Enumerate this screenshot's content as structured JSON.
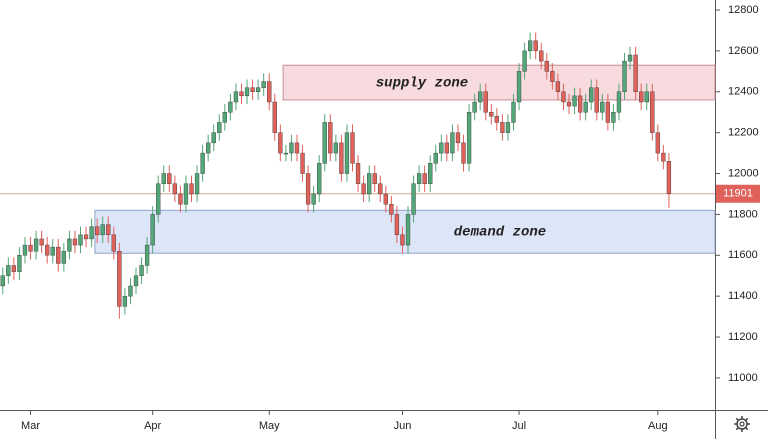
{
  "chart_data": {
    "type": "candlestick",
    "x": [
      0,
      1,
      2,
      3,
      4,
      5,
      6,
      7,
      8,
      9,
      10,
      11,
      12,
      13,
      14,
      15,
      16,
      17,
      18,
      19,
      20,
      21,
      22,
      23,
      24,
      25,
      26,
      27,
      28,
      29,
      30,
      31,
      32,
      33,
      34,
      35,
      36,
      37,
      38,
      39,
      40,
      41,
      42,
      43,
      44,
      45,
      46,
      47,
      48,
      49,
      50,
      51,
      52,
      53,
      54,
      55,
      56,
      57,
      58,
      59,
      60,
      61,
      62,
      63,
      64,
      65,
      66,
      67,
      68,
      69,
      70,
      71,
      72,
      73,
      74,
      75,
      76,
      77,
      78,
      79,
      80,
      81,
      82,
      83,
      84,
      85,
      86,
      87,
      88,
      89,
      90,
      91,
      92,
      93,
      94,
      95,
      96,
      97,
      98,
      99,
      100,
      101,
      102,
      103,
      104,
      105,
      106,
      107,
      108,
      109,
      110,
      111,
      112,
      113,
      114,
      115,
      116,
      117,
      118,
      119,
      120
    ],
    "open": [
      11450,
      11500,
      11550,
      11520,
      11600,
      11650,
      11620,
      11680,
      11650,
      11600,
      11640,
      11560,
      11620,
      11680,
      11650,
      11700,
      11680,
      11740,
      11700,
      11750,
      11700,
      11620,
      11350,
      11400,
      11450,
      11500,
      11550,
      11650,
      11800,
      11950,
      12000,
      11950,
      11900,
      11850,
      11950,
      11900,
      12000,
      12100,
      12150,
      12200,
      12250,
      12300,
      12350,
      12400,
      12380,
      12420,
      12400,
      12420,
      12450,
      12350,
      12200,
      12100,
      12100,
      12150,
      12100,
      12000,
      11850,
      11900,
      12050,
      12250,
      12100,
      12150,
      12000,
      12200,
      12050,
      11950,
      11900,
      12000,
      11950,
      11900,
      11850,
      11800,
      11700,
      11650,
      11800,
      11950,
      12000,
      11950,
      12050,
      12100,
      12150,
      12100,
      12200,
      12150,
      12050,
      12300,
      12350,
      12400,
      12300,
      12280,
      12250,
      12200,
      12250,
      12350,
      12500,
      12600,
      12650,
      12600,
      12550,
      12500,
      12450,
      12400,
      12350,
      12330,
      12380,
      12300,
      12350,
      12420,
      12300,
      12350,
      12250,
      12300,
      12400,
      12550,
      12580,
      12400,
      12350,
      12400,
      12200,
      12100,
      12060
    ],
    "high": [
      11540,
      11590,
      11590,
      11640,
      11690,
      11690,
      11720,
      11720,
      11690,
      11680,
      11680,
      11660,
      11720,
      11720,
      11740,
      11740,
      11780,
      11780,
      11790,
      11790,
      11740,
      11660,
      11440,
      11490,
      11540,
      11590,
      11690,
      11840,
      11990,
      12040,
      12040,
      11990,
      11940,
      11990,
      11990,
      12040,
      12140,
      12190,
      12240,
      12290,
      12340,
      12390,
      12440,
      12440,
      12460,
      12460,
      12460,
      12490,
      12490,
      12390,
      12240,
      12140,
      12190,
      12190,
      12140,
      12040,
      11940,
      12090,
      12290,
      12290,
      12190,
      12190,
      12240,
      12240,
      12090,
      11990,
      12040,
      12040,
      11990,
      11940,
      11890,
      11840,
      11740,
      11840,
      11990,
      12040,
      12040,
      12090,
      12140,
      12190,
      12190,
      12240,
      12240,
      12190,
      12340,
      12390,
      12440,
      12440,
      12340,
      12320,
      12290,
      12290,
      12390,
      12540,
      12640,
      12690,
      12690,
      12640,
      12590,
      12540,
      12490,
      12440,
      12390,
      12420,
      12420,
      12390,
      12460,
      12460,
      12390,
      12390,
      12340,
      12440,
      12590,
      12620,
      12620,
      12440,
      12440,
      12440,
      12240,
      12140,
      12100
    ],
    "low": [
      11410,
      11460,
      11480,
      11480,
      11560,
      11580,
      11580,
      11610,
      11560,
      11560,
      11520,
      11520,
      11580,
      11610,
      11610,
      11640,
      11640,
      11660,
      11660,
      11660,
      11580,
      11290,
      11310,
      11360,
      11410,
      11460,
      11510,
      11610,
      11760,
      11910,
      11910,
      11860,
      11810,
      11810,
      11860,
      11860,
      11960,
      12060,
      12110,
      12160,
      12210,
      12260,
      12310,
      12340,
      12340,
      12360,
      12360,
      12380,
      12310,
      12160,
      12060,
      12060,
      12060,
      12060,
      11960,
      11810,
      11810,
      11860,
      12010,
      12060,
      12060,
      11960,
      11960,
      12010,
      11910,
      11860,
      11860,
      11910,
      11860,
      11810,
      11760,
      11660,
      11610,
      11610,
      11760,
      11910,
      11910,
      11910,
      12010,
      12060,
      12060,
      12060,
      12110,
      12010,
      12010,
      12260,
      12310,
      12260,
      12240,
      12210,
      12160,
      12160,
      12210,
      12310,
      12460,
      12560,
      12560,
      12510,
      12460,
      12410,
      12360,
      12310,
      12290,
      12290,
      12260,
      12260,
      12310,
      12260,
      12260,
      12210,
      12210,
      12260,
      12360,
      12510,
      12360,
      12310,
      12310,
      12160,
      12060,
      12020,
      11830
    ],
    "close": [
      11500,
      11550,
      11520,
      11600,
      11650,
      11620,
      11680,
      11650,
      11600,
      11640,
      11560,
      11620,
      11680,
      11650,
      11700,
      11680,
      11740,
      11700,
      11750,
      11700,
      11620,
      11350,
      11400,
      11450,
      11500,
      11550,
      11650,
      11800,
      11950,
      12000,
      11950,
      11900,
      11850,
      11950,
      11900,
      12000,
      12100,
      12150,
      12200,
      12250,
      12300,
      12350,
      12400,
      12380,
      12420,
      12400,
      12420,
      12450,
      12350,
      12200,
      12100,
      12100,
      12150,
      12100,
      12000,
      11850,
      11900,
      12050,
      12250,
      12100,
      12150,
      12000,
      12200,
      12050,
      11950,
      11900,
      12000,
      11950,
      11900,
      11850,
      11800,
      11700,
      11650,
      11800,
      11950,
      12000,
      11950,
      12050,
      12100,
      12150,
      12100,
      12200,
      12150,
      12050,
      12300,
      12350,
      12400,
      12300,
      12280,
      12250,
      12200,
      12250,
      12350,
      12500,
      12600,
      12650,
      12600,
      12550,
      12500,
      12450,
      12400,
      12350,
      12330,
      12380,
      12300,
      12350,
      12420,
      12300,
      12350,
      12250,
      12300,
      12400,
      12550,
      12580,
      12400,
      12350,
      12400,
      12200,
      12100,
      12060,
      11901
    ],
    "up_color": "#53a677",
    "down_color": "#e0615a",
    "price_line_color": "#d4a98f",
    "xlim": [
      -0.5,
      128.3
    ],
    "xticks": [
      {
        "value": 5,
        "label": "Mar"
      },
      {
        "value": 27,
        "label": "Apr"
      },
      {
        "value": 48,
        "label": "May"
      },
      {
        "value": 72,
        "label": "Jun"
      },
      {
        "value": 93,
        "label": "Jul"
      },
      {
        "value": 118,
        "label": "Aug"
      }
    ],
    "ylim": [
      10843,
      12849
    ],
    "yticks": [
      11000,
      11200,
      11400,
      11600,
      11800,
      12000,
      12200,
      12400,
      12600,
      12800
    ],
    "zones": [
      {
        "label": "supply zone",
        "from": 12360,
        "to": 12530,
        "start": 50.5,
        "fill": "rgba(242,190,196,0.55)",
        "stroke": "#c98d95"
      },
      {
        "label": "demand zone",
        "from": 11610,
        "to": 11820,
        "start": 16.6,
        "fill": "rgba(196,214,244,0.6)",
        "stroke": "#8ea4cc"
      }
    ]
  }
}
